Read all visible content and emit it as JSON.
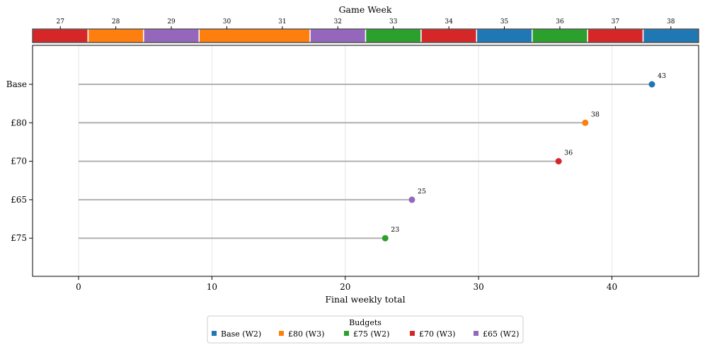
{
  "chart_data": {
    "type": "lollipop",
    "xlabel": "Final weekly total",
    "xlim": [
      -3.4,
      46.5
    ],
    "xticks": [
      0,
      10,
      20,
      30,
      40
    ],
    "grid": true,
    "categories": [
      "Base",
      "£80",
      "£70",
      "£65",
      "£75"
    ],
    "series": [
      {
        "name": "Base",
        "value": 43,
        "color": "#1f77b4",
        "value_label": "43"
      },
      {
        "name": "£80",
        "value": 38,
        "color": "#ff7f0e",
        "value_label": "38"
      },
      {
        "name": "£70",
        "value": 36,
        "color": "#d62728",
        "value_label": "36"
      },
      {
        "name": "£65",
        "value": 25,
        "color": "#9467bd",
        "value_label": "25"
      },
      {
        "name": "£75",
        "value": 23,
        "color": "#2ca02c",
        "value_label": "23"
      }
    ],
    "top_strip": {
      "title": "Game Week",
      "weeks": [
        {
          "label": "27",
          "color": "#d62728",
          "span": 1
        },
        {
          "label": "28",
          "color": "#ff7f0e",
          "span": 1
        },
        {
          "label": "29",
          "color": "#9467bd",
          "span": 1
        },
        {
          "label": "30",
          "color": "#ff7f0e",
          "span": 2,
          "label2": "31"
        },
        {
          "label": "32",
          "color": "#9467bd",
          "span": 1
        },
        {
          "label": "33",
          "color": "#2ca02c",
          "span": 1
        },
        {
          "label": "34",
          "color": "#d62728",
          "span": 1
        },
        {
          "label": "35",
          "color": "#1f77b4",
          "span": 1
        },
        {
          "label": "36",
          "color": "#2ca02c",
          "span": 1
        },
        {
          "label": "37",
          "color": "#d62728",
          "span": 1
        },
        {
          "label": "38",
          "color": "#1f77b4",
          "span": 1
        }
      ]
    },
    "legend": {
      "title": "Budgets",
      "placement": "bottom-center",
      "entries": [
        {
          "label": "Base (W2)",
          "color": "#1f77b4"
        },
        {
          "label": "£80 (W3)",
          "color": "#ff7f0e"
        },
        {
          "label": "£75 (W2)",
          "color": "#2ca02c"
        },
        {
          "label": "£70 (W3)",
          "color": "#d62728"
        },
        {
          "label": "£65 (W2)",
          "color": "#9467bd"
        }
      ]
    },
    "stem_color": "#b0b0b0"
  }
}
